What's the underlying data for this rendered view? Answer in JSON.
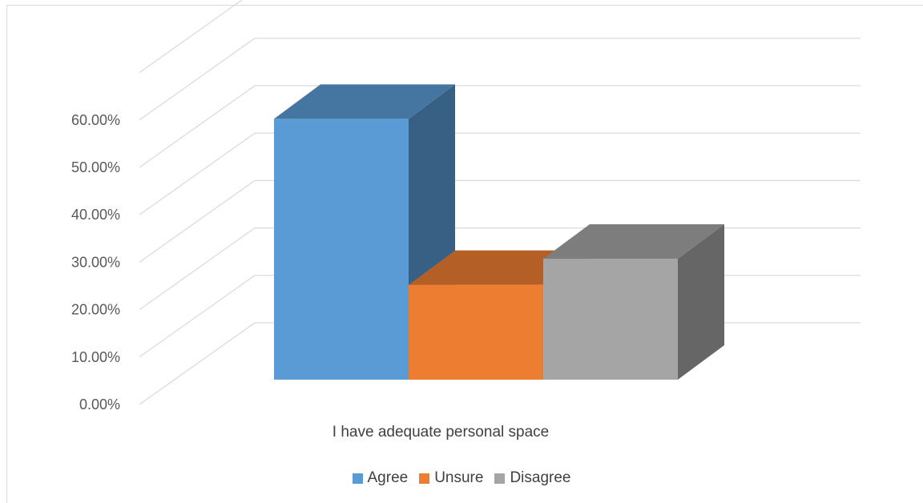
{
  "chart_data": {
    "type": "bar",
    "style": "3d-clustered-column",
    "categories": [
      "I have adequate personal space"
    ],
    "series": [
      {
        "name": "Agree",
        "values": [
          0.55
        ],
        "color": "#5b9bd5"
      },
      {
        "name": "Unsure",
        "values": [
          0.2
        ],
        "color": "#ed7d31"
      },
      {
        "name": "Disagree",
        "values": [
          0.255
        ],
        "color": "#a5a5a5"
      }
    ],
    "y_ticks": [
      "0.00%",
      "10.00%",
      "20.00%",
      "30.00%",
      "40.00%",
      "50.00%",
      "60.00%"
    ],
    "ylim": [
      0,
      0.7
    ],
    "grid": true,
    "legend_position": "bottom"
  }
}
